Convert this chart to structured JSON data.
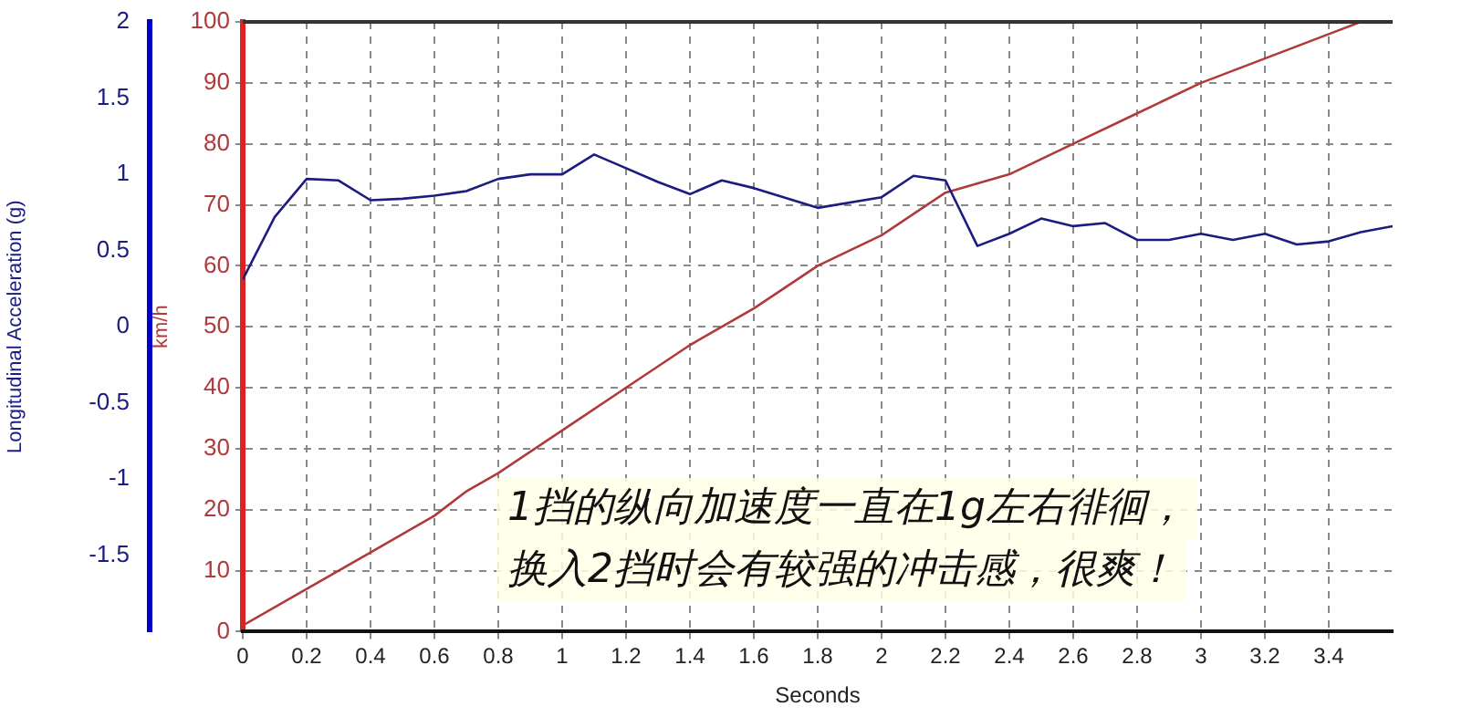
{
  "chart_data": {
    "type": "line",
    "xlabel": "Seconds",
    "ylabel": "km/h",
    "y2label": "Longitudinal Acceleration (g)",
    "xlim": [
      0,
      3.6
    ],
    "xticks": [
      0,
      0.2,
      0.4,
      0.6,
      0.8,
      1,
      1.2,
      1.4,
      1.6,
      1.8,
      2,
      2.2,
      2.4,
      2.6,
      2.8,
      3,
      3.2,
      3.4
    ],
    "ylim": [
      0,
      100
    ],
    "yticks": [
      0,
      10,
      20,
      30,
      40,
      50,
      60,
      70,
      80,
      90,
      100
    ],
    "y2lim": [
      -2,
      2
    ],
    "y2ticks": [
      -1.5,
      -1,
      -0.5,
      0,
      0.5,
      1,
      1.5,
      2
    ],
    "grid": true,
    "marker": "none",
    "line_style": "solid",
    "series": [
      {
        "axis": "y2",
        "color": "#1c1c80",
        "x": [
          0,
          0.1,
          0.2,
          0.3,
          0.4,
          0.5,
          0.6,
          0.7,
          0.8,
          0.9,
          1,
          1.1,
          1.2,
          1.3,
          1.4,
          1.5,
          1.6,
          1.8,
          2,
          2.1,
          2.2,
          2.3,
          2.4,
          2.5,
          2.6,
          2.7,
          2.8,
          2.9,
          3,
          3.1,
          3.2,
          3.3,
          3.4,
          3.5,
          3.6
        ],
        "values": [
          0.31,
          0.72,
          0.97,
          0.96,
          0.83,
          0.84,
          0.86,
          0.89,
          0.97,
          1,
          1,
          1.13,
          1.04,
          0.95,
          0.87,
          0.96,
          0.91,
          0.78,
          0.85,
          0.99,
          0.96,
          0.53,
          0.61,
          0.71,
          0.66,
          0.68,
          0.57,
          0.57,
          0.61,
          0.57,
          0.61,
          0.54,
          0.56,
          0.62,
          0.66
        ]
      },
      {
        "axis": "y",
        "color": "#b03a3a",
        "x": [
          0,
          0.2,
          0.4,
          0.6,
          0.7,
          0.8,
          1,
          1.2,
          1.4,
          1.6,
          1.8,
          2,
          2.2,
          2.4,
          2.6,
          2.8,
          3,
          3.2,
          3.4,
          3.5
        ],
        "values": [
          1,
          7,
          13,
          19,
          23,
          26,
          33,
          40,
          47,
          53,
          60,
          65,
          72,
          75,
          80,
          85,
          90,
          94,
          98,
          100
        ]
      }
    ],
    "annotations": [
      "1挡的纵向加速度一直在1g左右徘徊，",
      "换入2挡时会有较强的冲击感，很爽！"
    ]
  }
}
